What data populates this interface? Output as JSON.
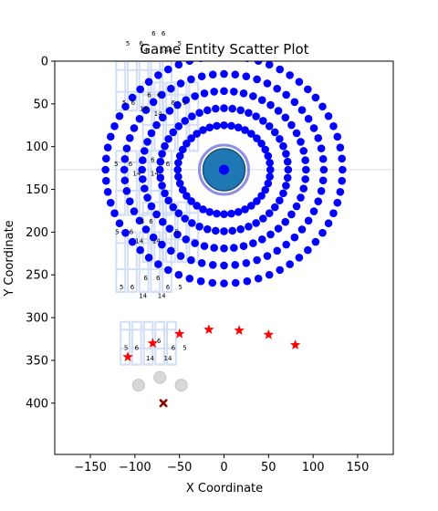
{
  "chart_data": {
    "type": "scatter",
    "title": "Game Entity Scatter Plot",
    "xlabel": "X Coordinate",
    "ylabel": "Y Coordinate",
    "xlim": [
      -190,
      190
    ],
    "ylim": [
      460,
      0
    ],
    "y_axis_inverted": true,
    "grid": false,
    "legend": "none",
    "x_ticks": [
      -150,
      -100,
      -50,
      0,
      50,
      100,
      150
    ],
    "y_ticks": [
      0,
      50,
      100,
      150,
      200,
      250,
      300,
      350,
      400
    ],
    "colors": {
      "rings": "#0000ff",
      "center": "#1f77b4",
      "center_edge": "#18507a",
      "center_halo": "#6b68d8",
      "stars": "#ff0000",
      "dark_x": "#8b0000",
      "grey_circles": "#c8c8c8",
      "ghost_structures": "#9db8ee",
      "crosshair": "#dddddd"
    },
    "center_point": {
      "x": 0,
      "y": 127
    },
    "crosshair_y": 127,
    "rings": [
      {
        "name": "ring-1",
        "cx": 0,
        "cy": 127,
        "r": 52,
        "points": 40
      },
      {
        "name": "ring-2",
        "cx": 0,
        "cy": 127,
        "r": 72,
        "points": 48
      },
      {
        "name": "ring-3",
        "cx": 0,
        "cy": 127,
        "r": 92,
        "points": 52
      },
      {
        "name": "ring-4",
        "cx": 0,
        "cy": 127,
        "r": 112,
        "points": 56
      },
      {
        "name": "ring-5",
        "cx": 0,
        "cy": 127,
        "r": 133,
        "points": 64
      }
    ],
    "stars": [
      {
        "x": -108,
        "y": 346
      },
      {
        "x": -80,
        "y": 330
      },
      {
        "x": -50,
        "y": 319
      },
      {
        "x": -17,
        "y": 314
      },
      {
        "x": 17,
        "y": 315
      },
      {
        "x": 50,
        "y": 320
      },
      {
        "x": 80,
        "y": 332
      }
    ],
    "grey_circles": [
      {
        "x": -96,
        "y": 379
      },
      {
        "x": -72,
        "y": 370
      },
      {
        "x": -48,
        "y": 379
      }
    ],
    "x_markers": [
      {
        "x": -68,
        "y": 400
      }
    ],
    "ghost_structures": [
      {
        "cx": -90,
        "top": 0,
        "bottom": 58
      },
      {
        "cx": -60,
        "top": 25,
        "bottom": 105
      },
      {
        "cx": -90,
        "top": 105,
        "bottom": 180
      },
      {
        "cx": -60,
        "top": 165,
        "bottom": 235
      },
      {
        "cx": -90,
        "top": 200,
        "bottom": 270
      },
      {
        "cx": -85,
        "top": 305,
        "bottom": 355
      }
    ],
    "ghost_labels": [
      {
        "text": "6",
        "x": -79,
        "y": -30
      },
      {
        "text": "6",
        "x": -68,
        "y": -30
      },
      {
        "text": "5",
        "x": -108,
        "y": -18
      },
      {
        "text": "6",
        "x": -93,
        "y": -18
      },
      {
        "text": "14",
        "x": -90,
        "y": -10
      },
      {
        "text": "5",
        "x": -50,
        "y": -18
      },
      {
        "text": "6",
        "x": -60,
        "y": -10
      },
      {
        "text": "14",
        "x": -67,
        "y": -10
      },
      {
        "text": "5",
        "x": -112,
        "y": 51
      },
      {
        "text": "6",
        "x": -102,
        "y": 51
      },
      {
        "text": "6",
        "x": -84,
        "y": 42
      },
      {
        "text": "6",
        "x": -73,
        "y": 42
      },
      {
        "text": "14",
        "x": -90,
        "y": 58
      },
      {
        "text": "6",
        "x": -57,
        "y": 51
      },
      {
        "text": "5",
        "x": -44,
        "y": 51
      },
      {
        "text": "14",
        "x": -74,
        "y": 64
      },
      {
        "text": "6",
        "x": -80,
        "y": 118
      },
      {
        "text": "5",
        "x": -121,
        "y": 123
      },
      {
        "text": "6",
        "x": -105,
        "y": 123
      },
      {
        "text": "6",
        "x": -63,
        "y": 123
      },
      {
        "text": "14",
        "x": -98,
        "y": 134
      },
      {
        "text": "14",
        "x": -78,
        "y": 134
      },
      {
        "text": "6",
        "x": -92,
        "y": 190
      },
      {
        "text": "6",
        "x": -82,
        "y": 190
      },
      {
        "text": "5",
        "x": -120,
        "y": 202
      },
      {
        "text": "6",
        "x": -104,
        "y": 202
      },
      {
        "text": "5",
        "x": -53,
        "y": 202
      },
      {
        "text": "14",
        "x": -95,
        "y": 213
      },
      {
        "text": "14",
        "x": -76,
        "y": 213
      },
      {
        "text": "6",
        "x": -88,
        "y": 256
      },
      {
        "text": "6",
        "x": -74,
        "y": 256
      },
      {
        "text": "5",
        "x": -115,
        "y": 267
      },
      {
        "text": "6",
        "x": -103,
        "y": 267
      },
      {
        "text": "6",
        "x": -63,
        "y": 267
      },
      {
        "text": "5",
        "x": -49,
        "y": 267
      },
      {
        "text": "14",
        "x": -91,
        "y": 277
      },
      {
        "text": "14",
        "x": -70,
        "y": 277
      },
      {
        "text": "6",
        "x": -73,
        "y": 330
      },
      {
        "text": "5",
        "x": -110,
        "y": 338
      },
      {
        "text": "6",
        "x": -98,
        "y": 338
      },
      {
        "text": "6",
        "x": -57,
        "y": 338
      },
      {
        "text": "5",
        "x": -44,
        "y": 338
      },
      {
        "text": "14",
        "x": -83,
        "y": 350
      },
      {
        "text": "14",
        "x": -63,
        "y": 350
      }
    ]
  }
}
